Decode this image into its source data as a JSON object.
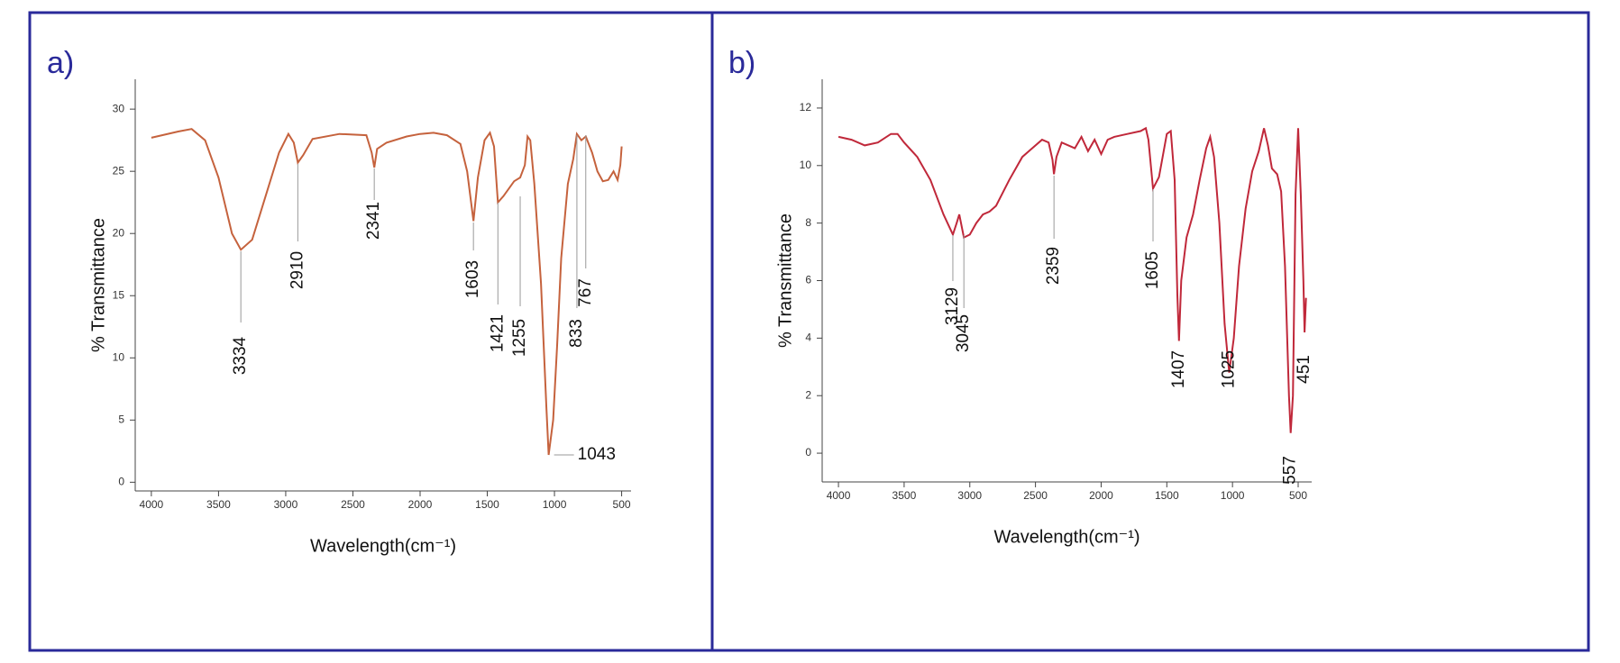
{
  "chart_data": [
    {
      "type": "line",
      "title": "a)",
      "x_label": "Wavelength(cm⁻¹)",
      "y_label": "% Transmittance",
      "color": "#c5623d",
      "xlim": [
        4120,
        430
      ],
      "xticks": [
        4000,
        3500,
        3000,
        2500,
        2000,
        1500,
        1000,
        500
      ],
      "ylim": [
        -0.7,
        32.4
      ],
      "yticks": [
        0,
        5,
        10,
        15,
        20,
        25,
        30
      ],
      "x": [
        4000,
        3800,
        3700,
        3600,
        3500,
        3400,
        3334,
        3250,
        3150,
        3050,
        2980,
        2940,
        2910,
        2870,
        2800,
        2600,
        2400,
        2360,
        2341,
        2320,
        2250,
        2100,
        2000,
        1900,
        1800,
        1700,
        1650,
        1603,
        1570,
        1520,
        1480,
        1450,
        1421,
        1380,
        1300,
        1255,
        1220,
        1200,
        1180,
        1150,
        1100,
        1060,
        1043,
        1010,
        980,
        950,
        900,
        860,
        833,
        800,
        767,
        720,
        680,
        640,
        600,
        560,
        530,
        510,
        500
      ],
      "values": [
        27.7,
        28.2,
        28.4,
        27.5,
        24.5,
        20.0,
        18.7,
        19.5,
        23,
        26.5,
        28.0,
        27.3,
        25.7,
        26.3,
        27.6,
        28.0,
        27.9,
        26.5,
        25.3,
        26.8,
        27.3,
        27.8,
        28.0,
        28.1,
        27.9,
        27.2,
        25,
        21.0,
        24.5,
        27.5,
        28.1,
        27,
        22.5,
        23,
        24.2,
        24.5,
        25.5,
        27.8,
        27.5,
        24,
        16,
        6,
        2.2,
        5,
        11,
        18,
        24,
        26,
        28,
        27.5,
        27.8,
        26.5,
        25,
        24.2,
        24.3,
        25,
        24.3,
        25.5,
        27
      ],
      "peaks": [
        3334,
        2910,
        2341,
        1603,
        1421,
        1255,
        1043,
        833,
        767
      ]
    },
    {
      "type": "line",
      "title": "b)",
      "x_label": "Wavelength(cm⁻¹)",
      "y_label": "% Transmittance",
      "color": "#c0283a",
      "xlim": [
        4124,
        397
      ],
      "xticks": [
        4000,
        3500,
        3000,
        2500,
        2000,
        1500,
        1000,
        500
      ],
      "ylim": [
        -1,
        13
      ],
      "yticks": [
        0,
        2,
        4,
        6,
        8,
        10,
        12
      ],
      "x": [
        4000,
        3900,
        3800,
        3700,
        3600,
        3550,
        3500,
        3400,
        3300,
        3200,
        3129,
        3100,
        3080,
        3045,
        3000,
        2950,
        2900,
        2850,
        2800,
        2700,
        2600,
        2450,
        2400,
        2370,
        2359,
        2340,
        2300,
        2200,
        2150,
        2100,
        2050,
        2000,
        1950,
        1900,
        1800,
        1700,
        1660,
        1640,
        1605,
        1560,
        1500,
        1470,
        1440,
        1420,
        1407,
        1390,
        1350,
        1300,
        1250,
        1200,
        1170,
        1140,
        1100,
        1060,
        1025,
        990,
        950,
        900,
        850,
        800,
        760,
        730,
        700,
        660,
        630,
        600,
        570,
        557,
        540,
        520,
        500,
        480,
        460,
        451,
        440
      ],
      "values": [
        11.0,
        10.9,
        10.7,
        10.8,
        11.1,
        11.1,
        10.8,
        10.3,
        9.5,
        8.3,
        7.6,
        8.0,
        8.3,
        7.5,
        7.6,
        8.0,
        8.3,
        8.4,
        8.6,
        9.5,
        10.3,
        10.9,
        10.8,
        10.2,
        9.7,
        10.3,
        10.8,
        10.6,
        11.0,
        10.5,
        10.9,
        10.4,
        10.9,
        11.0,
        11.1,
        11.2,
        11.3,
        10.9,
        9.2,
        9.6,
        11.1,
        11.2,
        9.5,
        5.5,
        3.9,
        6,
        7.5,
        8.3,
        9.5,
        10.6,
        11.0,
        10.3,
        8,
        4.5,
        2.8,
        4,
        6.5,
        8.5,
        9.8,
        10.5,
        11.3,
        10.7,
        9.9,
        9.7,
        9.1,
        6.5,
        2,
        0.7,
        2,
        9,
        11.3,
        9,
        6,
        4.2,
        5.4
      ],
      "peaks": [
        3129,
        3045,
        2359,
        1605,
        1407,
        1025,
        557,
        451
      ]
    }
  ]
}
